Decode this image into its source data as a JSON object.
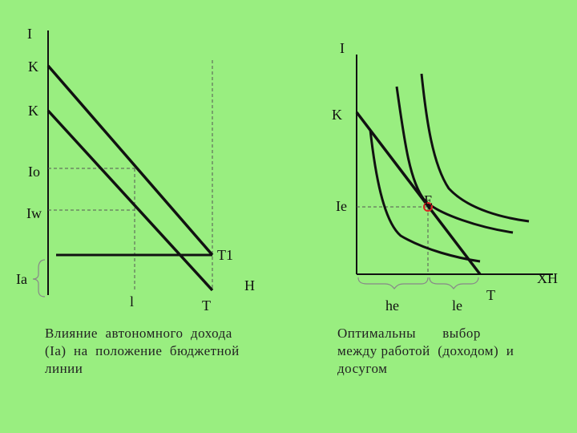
{
  "colors": {
    "background": "#99ee80",
    "ink": "#111111",
    "accent": "#dd2222"
  },
  "left_diagram": {
    "axis_y_label": "I",
    "label_k_top": "K",
    "label_k_bottom": "K",
    "label_io": "Io",
    "label_iw": "Iw",
    "label_ia": "Ia",
    "label_t1": "T1",
    "label_l": "l",
    "label_t": "T",
    "label_h": "H",
    "caption": [
      "Влияние  автономного  дохода",
      "(Ia)  на  положение  бюджетной",
      "линии"
    ]
  },
  "right_diagram": {
    "axis_y_label": "I",
    "label_k": "K",
    "label_ie": "Ie",
    "label_e": "E",
    "label_he": "he",
    "label_le": "le",
    "label_t": "T",
    "label_xh": "XH",
    "caption": [
      "Оптимальны       выбор",
      "между работой  (доходом)  и",
      "досугом"
    ]
  }
}
